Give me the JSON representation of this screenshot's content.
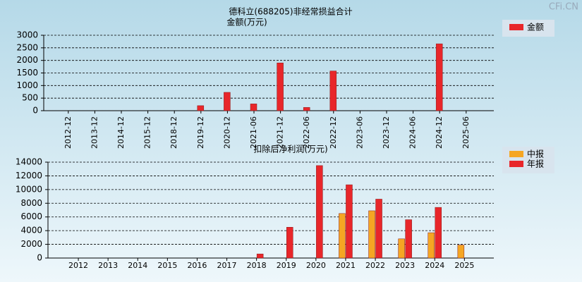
{
  "watermark": "CFi.CN",
  "chart_data": [
    {
      "type": "bar",
      "title": "德科立(688205)非经常损益合计",
      "y_label": "金额(万元)",
      "categories": [
        "2012-12",
        "2013-12",
        "2014-12",
        "2015-12",
        "2018-12",
        "2019-12",
        "2020-12",
        "2021-06",
        "2021-12",
        "2022-06",
        "2022-12",
        "2023-06",
        "2023-12",
        "2024-06",
        "2024-12",
        "2025-06"
      ],
      "series": [
        {
          "name": "金额",
          "color": "#e8262a",
          "values": [
            null,
            null,
            null,
            null,
            null,
            200,
            730,
            270,
            1900,
            130,
            1580,
            null,
            null,
            null,
            2660,
            null
          ]
        }
      ],
      "ylim": [
        0,
        3000
      ],
      "yticks": [
        0,
        500,
        1000,
        1500,
        2000,
        2500,
        3000
      ],
      "grid": true,
      "legend": "right"
    },
    {
      "type": "bar",
      "title": "扣除后净利润(万元)",
      "categories": [
        "2012",
        "2013",
        "2014",
        "2015",
        "2016",
        "2017",
        "2018",
        "2019",
        "2020",
        "2021",
        "2022",
        "2023",
        "2024",
        "2025"
      ],
      "series": [
        {
          "name": "中报",
          "color": "#f5a623",
          "values": [
            null,
            null,
            null,
            null,
            null,
            null,
            null,
            null,
            null,
            6500,
            6900,
            2800,
            3700,
            1900
          ]
        },
        {
          "name": "年报",
          "color": "#e8262a",
          "values": [
            null,
            null,
            null,
            null,
            null,
            null,
            600,
            4500,
            13500,
            10700,
            8600,
            5600,
            7400,
            null
          ]
        }
      ],
      "ylim": [
        0,
        14000
      ],
      "yticks": [
        0,
        2000,
        4000,
        6000,
        8000,
        10000,
        12000,
        14000
      ],
      "grid": true,
      "legend": "right"
    }
  ]
}
